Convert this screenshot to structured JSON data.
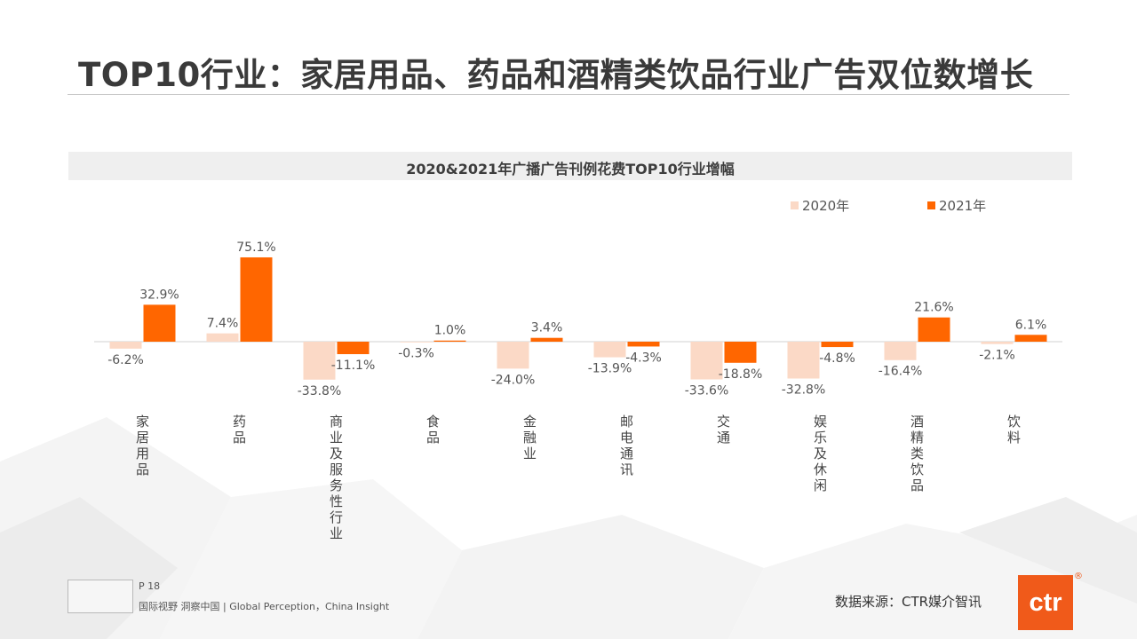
{
  "slide": {
    "title": "TOP10行业：家居用品、药品和酒精类饮品行业广告双位数增长",
    "page": "P 18",
    "slogan": "国际视野  洞察中国 |  Global Perception，China Insight",
    "source": "数据来源：CTR媒介智讯",
    "brand": "ctr",
    "brand_mark": "®"
  },
  "colors": {
    "series_2020": "#fbd9c6",
    "series_2021": "#ff6600",
    "axis": "#d0d0d0",
    "text": "#555555"
  },
  "chart_data": {
    "type": "bar",
    "title": "2020&2021年广播广告刊例花费TOP10行业增幅",
    "categories": [
      "家居用品",
      "药品",
      "商业及服务性行业",
      "食品",
      "金融业",
      "邮电通讯",
      "交通",
      "娱乐及休闲",
      "酒精类饮品",
      "饮料"
    ],
    "series": [
      {
        "name": "2020年",
        "values": [
          -6.2,
          7.4,
          -33.8,
          -0.3,
          -24.0,
          -13.9,
          -33.6,
          -32.8,
          -16.4,
          -2.1
        ],
        "labels": [
          "-6.2%",
          "7.4%",
          "-33.8%",
          "-0.3%",
          "-24.0%",
          "-13.9%",
          "-33.6%",
          "-32.8%",
          "-16.4%",
          "-2.1%"
        ]
      },
      {
        "name": "2021年",
        "values": [
          32.9,
          75.1,
          -11.1,
          1.0,
          3.4,
          -4.3,
          -18.8,
          -4.8,
          21.6,
          6.1
        ],
        "labels": [
          "32.9%",
          "75.1%",
          "-11.1%",
          "1.0%",
          "3.4%",
          "-4.3%",
          "-18.8%",
          "-4.8%",
          "21.6%",
          "6.1%"
        ]
      }
    ],
    "unit": "%",
    "legend_position": "top-right",
    "grid": false
  }
}
